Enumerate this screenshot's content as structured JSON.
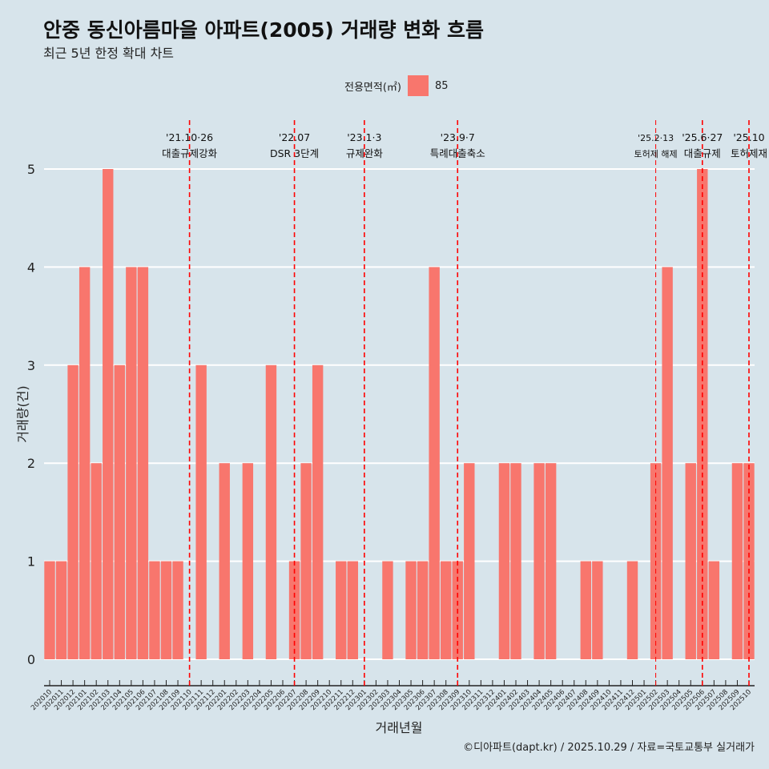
{
  "chart_data": {
    "type": "bar",
    "title": "안중 동신아름마을 아파트(2005) 거래량 변화 흐름",
    "subtitle": "최근 5년 한정 확대 차트",
    "xlabel": "거래년월",
    "ylabel": "거래량(건)",
    "ylim": [
      0,
      5
    ],
    "yticks": [
      0,
      1,
      2,
      3,
      4,
      5
    ],
    "legend": {
      "title": "전용면적(㎡)",
      "entries": [
        "85"
      ],
      "placement": "top"
    },
    "bar_color": "#f8766d",
    "categories": [
      "202010",
      "202011",
      "202012",
      "202101",
      "202102",
      "202103",
      "202104",
      "202105",
      "202106",
      "202107",
      "202108",
      "202109",
      "202110",
      "202111",
      "202112",
      "202201",
      "202202",
      "202203",
      "202204",
      "202205",
      "202206",
      "202207",
      "202208",
      "202209",
      "202210",
      "202211",
      "202212",
      "202301",
      "202302",
      "202303",
      "202304",
      "202305",
      "202306",
      "202307",
      "202308",
      "202309",
      "202310",
      "202311",
      "202312",
      "202401",
      "202402",
      "202403",
      "202404",
      "202405",
      "202406",
      "202407",
      "202408",
      "202409",
      "202410",
      "202411",
      "202412",
      "202501",
      "202502",
      "202503",
      "202504",
      "202505",
      "202506",
      "202507",
      "202508",
      "202509",
      "202510"
    ],
    "values": [
      1,
      1,
      3,
      4,
      2,
      5,
      3,
      4,
      4,
      1,
      1,
      1,
      0,
      3,
      0,
      2,
      0,
      2,
      0,
      3,
      0,
      1,
      2,
      3,
      0,
      1,
      1,
      0,
      0,
      1,
      0,
      1,
      1,
      4,
      1,
      1,
      2,
      0,
      0,
      2,
      2,
      0,
      2,
      2,
      0,
      0,
      1,
      1,
      0,
      0,
      1,
      0,
      2,
      4,
      0,
      2,
      5,
      1,
      0,
      2,
      2
    ],
    "annotations": [
      {
        "at": "202110",
        "date": "'21.10·26",
        "label": "대출규제강화",
        "small": false
      },
      {
        "at": "202207",
        "date": "'22.07",
        "label": "DSR 3단계",
        "small": false
      },
      {
        "at": "202301",
        "date": "'23.1·3",
        "label": "규제완화",
        "small": false
      },
      {
        "at": "202309",
        "date": "'23.9·7",
        "label": "특례대출축소",
        "small": false
      },
      {
        "at": "202502",
        "date": "'25.2·13",
        "label": "토허제 해제",
        "small": true
      },
      {
        "at": "202506",
        "date": "'25.6·27",
        "label": "대출규제",
        "small": false
      },
      {
        "at": "202510",
        "date": "'25.10",
        "label": "토허제재",
        "small": false
      }
    ],
    "annotation_color": "#ff0000"
  },
  "caption": "©디아파트(dapt.kr) / 2025.10.29 / 자료=국토교통부 실거래가"
}
